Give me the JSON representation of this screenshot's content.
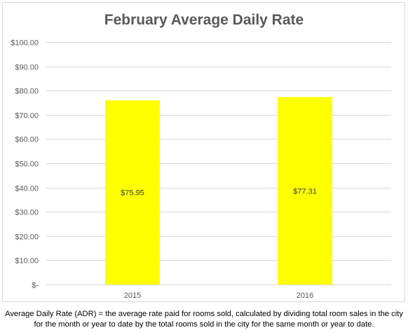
{
  "chart_data": {
    "type": "bar",
    "title": "February Average Daily Rate",
    "categories": [
      "2015",
      "2016"
    ],
    "values": [
      75.95,
      77.31
    ],
    "data_labels": [
      "$75.95",
      "$77.31"
    ],
    "ylim": [
      0,
      100
    ],
    "y_ticks": [
      {
        "value": 0,
        "label": "$-"
      },
      {
        "value": 10,
        "label": "$10.00"
      },
      {
        "value": 20,
        "label": "$20.00"
      },
      {
        "value": 30,
        "label": "$30.00"
      },
      {
        "value": 40,
        "label": "$40.00"
      },
      {
        "value": 50,
        "label": "$50.00"
      },
      {
        "value": 60,
        "label": "$60.00"
      },
      {
        "value": 70,
        "label": "$70.00"
      },
      {
        "value": 80,
        "label": "$80.00"
      },
      {
        "value": 90,
        "label": "$90.00"
      },
      {
        "value": 100,
        "label": "$100.00"
      }
    ],
    "xlabel": "",
    "ylabel": "",
    "grid": true,
    "legend": "none",
    "bar_color": "#ffff00",
    "grid_color": "#d9d9d9"
  },
  "footnote": {
    "line1": "Average Daily Rate (ADR) = the average rate paid for rooms sold, calculated by dividing total room sales in the city",
    "line2": "for the month or year to date by the total rooms sold in the city for the same month or year to date."
  }
}
